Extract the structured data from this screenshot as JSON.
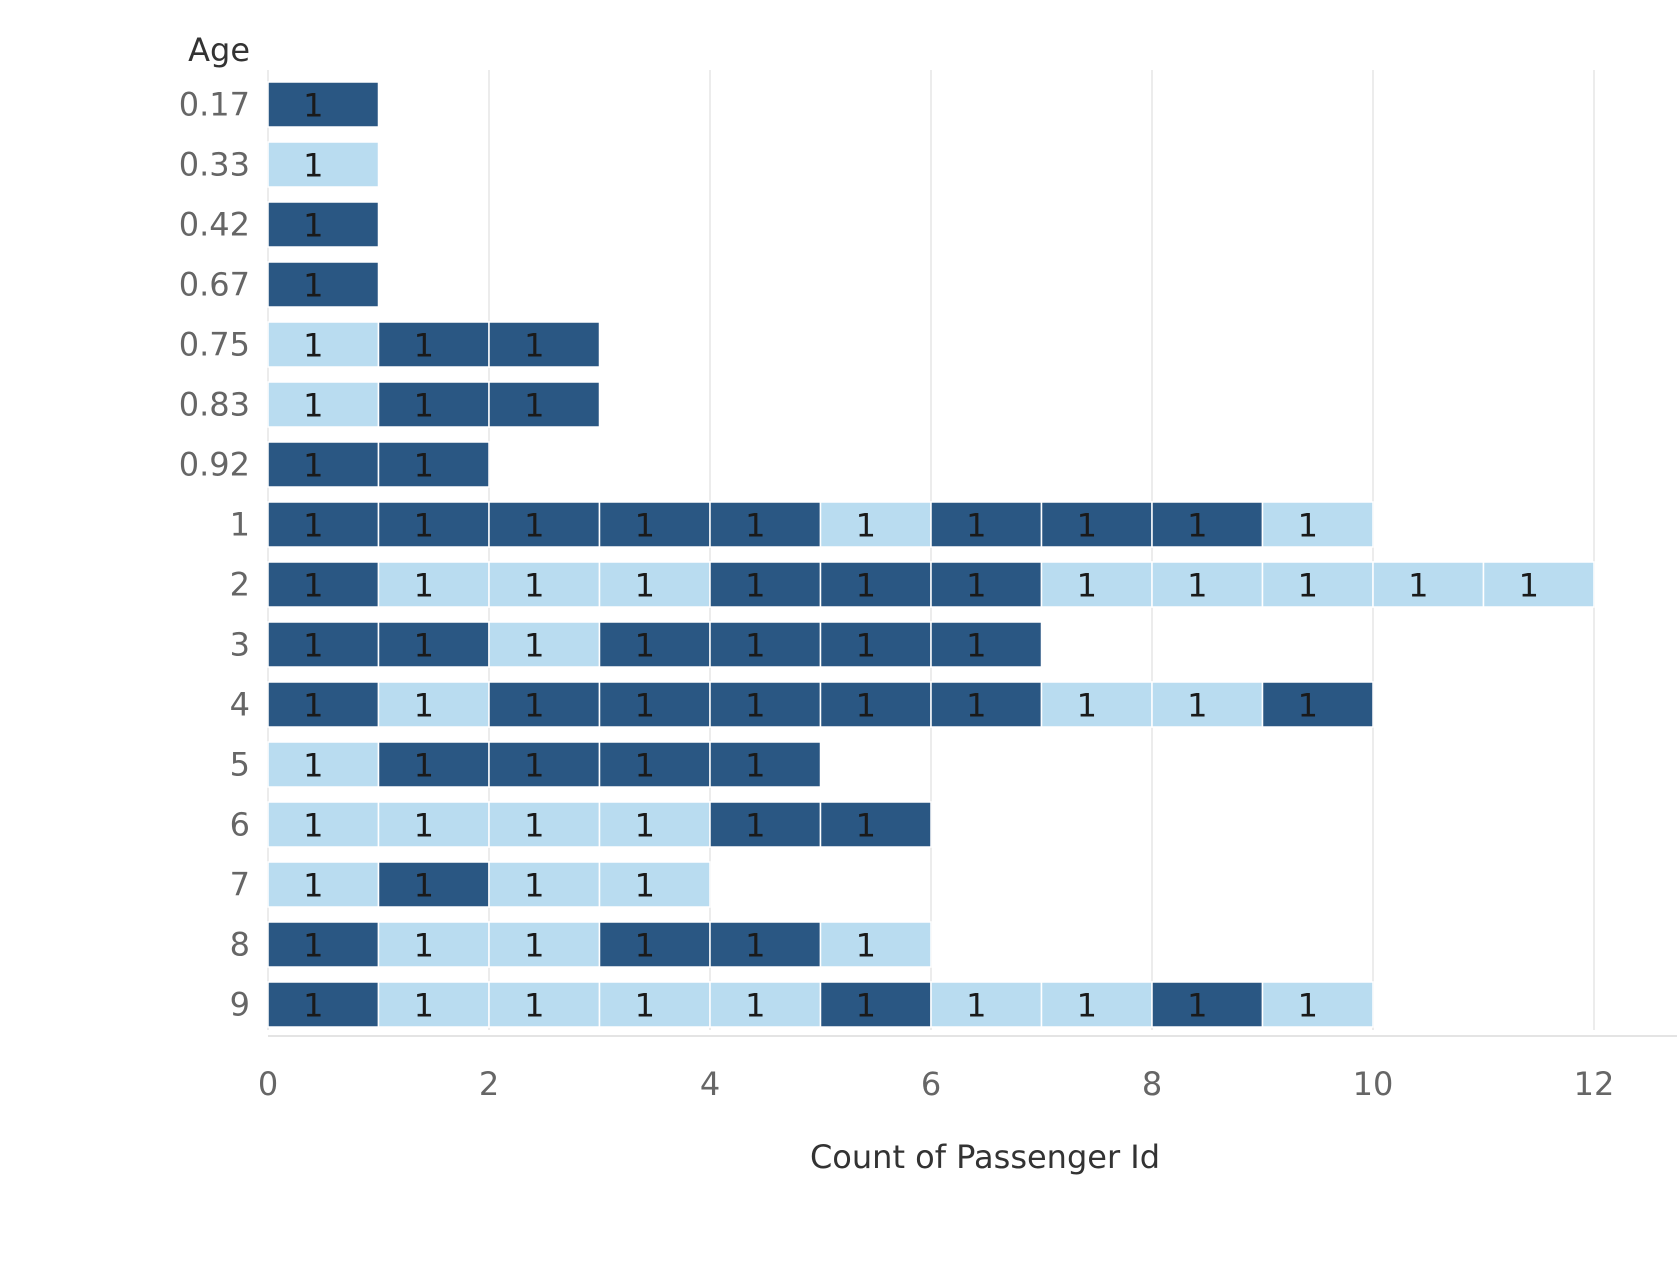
{
  "chart_data": {
    "type": "bar",
    "orientation": "horizontal",
    "stacked": true,
    "title": "",
    "ylabel": "Age",
    "xlabel": "Count of Passenger Id",
    "xlim": [
      0,
      12
    ],
    "xticks": [
      0,
      2,
      4,
      6,
      8,
      10,
      12
    ],
    "grid": "vertical",
    "legend": "none",
    "colors": {
      "dark": "#2a5783",
      "light": "#b9dcf0"
    },
    "categories": [
      "0.17",
      "0.33",
      "0.42",
      "0.67",
      "0.75",
      "0.83",
      "0.92",
      "1",
      "2",
      "3",
      "4",
      "5",
      "6",
      "7",
      "8",
      "9"
    ],
    "segments": [
      [
        "dark"
      ],
      [
        "light"
      ],
      [
        "dark"
      ],
      [
        "dark"
      ],
      [
        "light",
        "dark",
        "dark"
      ],
      [
        "light",
        "dark",
        "dark"
      ],
      [
        "dark",
        "dark"
      ],
      [
        "dark",
        "dark",
        "dark",
        "dark",
        "dark",
        "light",
        "dark",
        "dark",
        "dark",
        "light"
      ],
      [
        "dark",
        "light",
        "light",
        "light",
        "dark",
        "dark",
        "dark",
        "light",
        "light",
        "light",
        "light",
        "light"
      ],
      [
        "dark",
        "dark",
        "light",
        "dark",
        "dark",
        "dark",
        "dark"
      ],
      [
        "dark",
        "light",
        "dark",
        "dark",
        "dark",
        "dark",
        "dark",
        "light",
        "light",
        "dark"
      ],
      [
        "light",
        "dark",
        "dark",
        "dark",
        "dark"
      ],
      [
        "light",
        "light",
        "light",
        "light",
        "dark",
        "dark"
      ],
      [
        "light",
        "dark",
        "light",
        "light"
      ],
      [
        "dark",
        "light",
        "light",
        "dark",
        "dark",
        "light"
      ],
      [
        "dark",
        "light",
        "light",
        "light",
        "light",
        "dark",
        "light",
        "light",
        "dark",
        "light"
      ]
    ],
    "segment_value": 1,
    "segment_label": "1"
  }
}
